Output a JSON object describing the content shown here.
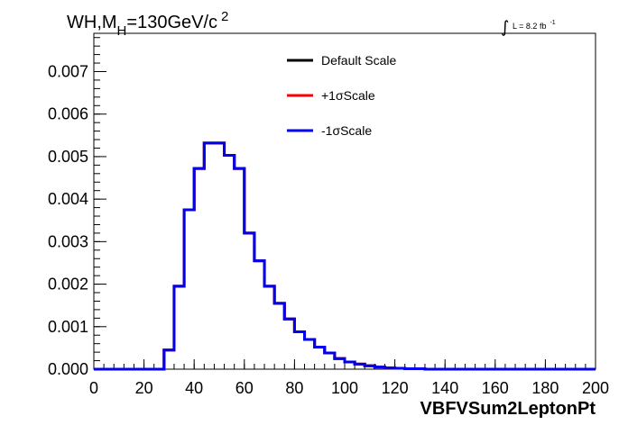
{
  "chart_data": {
    "type": "line",
    "title_parts": {
      "main": "WH,M",
      "sub": "H",
      "rest": "=130GeV/c",
      "sup": "2"
    },
    "lumi": {
      "integral": "∫",
      "text": "L = 8.2 fb",
      "sup": "-1"
    },
    "xlabel": "VBFVSum2LeptonPt",
    "ylabel": "",
    "xlim": [
      0,
      200
    ],
    "ylim": [
      0,
      0.0079
    ],
    "x_ticks": [
      0,
      20,
      40,
      60,
      80,
      100,
      120,
      140,
      160,
      180,
      200
    ],
    "x_tick_labels": [
      "0",
      "20",
      "40",
      "60",
      "80",
      "100",
      "120",
      "140",
      "160",
      "180",
      "200"
    ],
    "y_ticks": [
      0,
      0.001,
      0.002,
      0.003,
      0.004,
      0.005,
      0.006,
      0.007
    ],
    "y_tick_labels": [
      "0.000",
      "0.001",
      "0.002",
      "0.003",
      "0.004",
      "0.005",
      "0.006",
      "0.007"
    ],
    "bin_width": 4,
    "bin_edges_start": 0,
    "series": [
      {
        "name": "Default Scale",
        "color": "#000000",
        "values": [
          0,
          0,
          0,
          0,
          0,
          0,
          0,
          0.00045,
          0.00195,
          0.00375,
          0.00472,
          0.00532,
          0.00532,
          0.00503,
          0.00472,
          0.0032,
          0.00255,
          0.00195,
          0.00155,
          0.00118,
          0.00088,
          0.0007,
          0.00052,
          0.00038,
          0.00025,
          0.00017,
          0.00012,
          8e-05,
          5e-05,
          3e-05,
          2e-05,
          1e-05,
          1e-05,
          0,
          0,
          0,
          0,
          0,
          0,
          0,
          0,
          0,
          0,
          0,
          0,
          0,
          0,
          0,
          0,
          0
        ]
      },
      {
        "name": "+1σScale",
        "color": "#ff0000",
        "values": [
          0,
          0,
          0,
          0,
          0,
          0,
          0,
          0.00045,
          0.00195,
          0.00375,
          0.00472,
          0.00532,
          0.00532,
          0.00503,
          0.00472,
          0.0032,
          0.00255,
          0.00195,
          0.00155,
          0.00118,
          0.00088,
          0.0007,
          0.00052,
          0.00038,
          0.00025,
          0.00017,
          0.00012,
          8e-05,
          5e-05,
          3e-05,
          2e-05,
          1e-05,
          1e-05,
          0,
          0,
          0,
          0,
          0,
          0,
          0,
          0,
          0,
          0,
          0,
          0,
          0,
          0,
          0,
          0,
          0
        ]
      },
      {
        "name": "-1σScale",
        "color": "#0000ee",
        "values": [
          0,
          0,
          0,
          0,
          0,
          0,
          0,
          0.00045,
          0.00195,
          0.00375,
          0.00472,
          0.00532,
          0.00532,
          0.00503,
          0.00472,
          0.0032,
          0.00255,
          0.00195,
          0.00155,
          0.00118,
          0.00088,
          0.0007,
          0.00052,
          0.00038,
          0.00025,
          0.00017,
          0.00012,
          8e-05,
          5e-05,
          3e-05,
          2e-05,
          1e-05,
          1e-05,
          0,
          0,
          0,
          0,
          0,
          0,
          0,
          0,
          0,
          0,
          0,
          0,
          0,
          0,
          0,
          0,
          0
        ]
      }
    ],
    "legend_placement": "top-center",
    "grid": false
  }
}
